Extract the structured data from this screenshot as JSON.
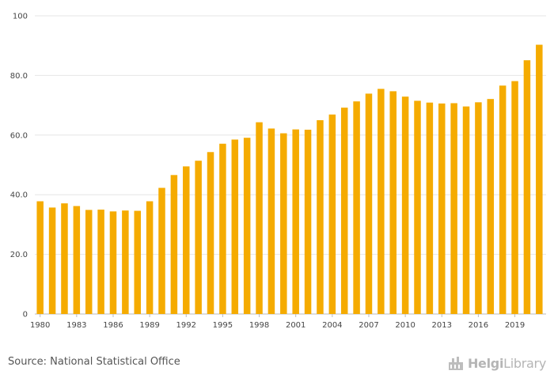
{
  "chart_data": {
    "type": "bar",
    "title": "",
    "xlabel": "",
    "ylabel": "",
    "ylim": [
      0,
      100
    ],
    "yticks": [
      "0",
      "20.0",
      "40.0",
      "60.0",
      "80.0",
      "100"
    ],
    "categories": [
      "1980",
      "1981",
      "1982",
      "1983",
      "1984",
      "1985",
      "1986",
      "1987",
      "1988",
      "1989",
      "1990",
      "1991",
      "1992",
      "1993",
      "1994",
      "1995",
      "1996",
      "1997",
      "1998",
      "1999",
      "2000",
      "2001",
      "2002",
      "2003",
      "2004",
      "2005",
      "2006",
      "2007",
      "2008",
      "2009",
      "2010",
      "2011",
      "2012",
      "2013",
      "2014",
      "2015",
      "2016",
      "2017",
      "2018",
      "2019",
      "2020",
      "2021"
    ],
    "xtick_labels": [
      "1980",
      "1983",
      "1986",
      "1989",
      "1992",
      "1995",
      "1998",
      "2001",
      "2004",
      "2007",
      "2010",
      "2013",
      "2016",
      "2019"
    ],
    "values": [
      37.8,
      35.7,
      37.1,
      36.2,
      34.9,
      35.0,
      34.4,
      34.7,
      34.6,
      37.8,
      42.3,
      46.6,
      49.5,
      51.4,
      54.3,
      57.1,
      58.5,
      59.1,
      64.3,
      62.2,
      60.6,
      61.9,
      61.8,
      65.0,
      66.9,
      69.2,
      71.3,
      73.9,
      75.5,
      74.7,
      72.9,
      71.5,
      70.9,
      70.6,
      70.7,
      69.6,
      71.0,
      72.1,
      76.6,
      78.1,
      85.1,
      90.3
    ],
    "bar_color": "#f5ab00",
    "grid": true
  },
  "footer": {
    "source": "Source: National Statistical Office",
    "logo_bold": "Helgi",
    "logo_light": "Library"
  }
}
